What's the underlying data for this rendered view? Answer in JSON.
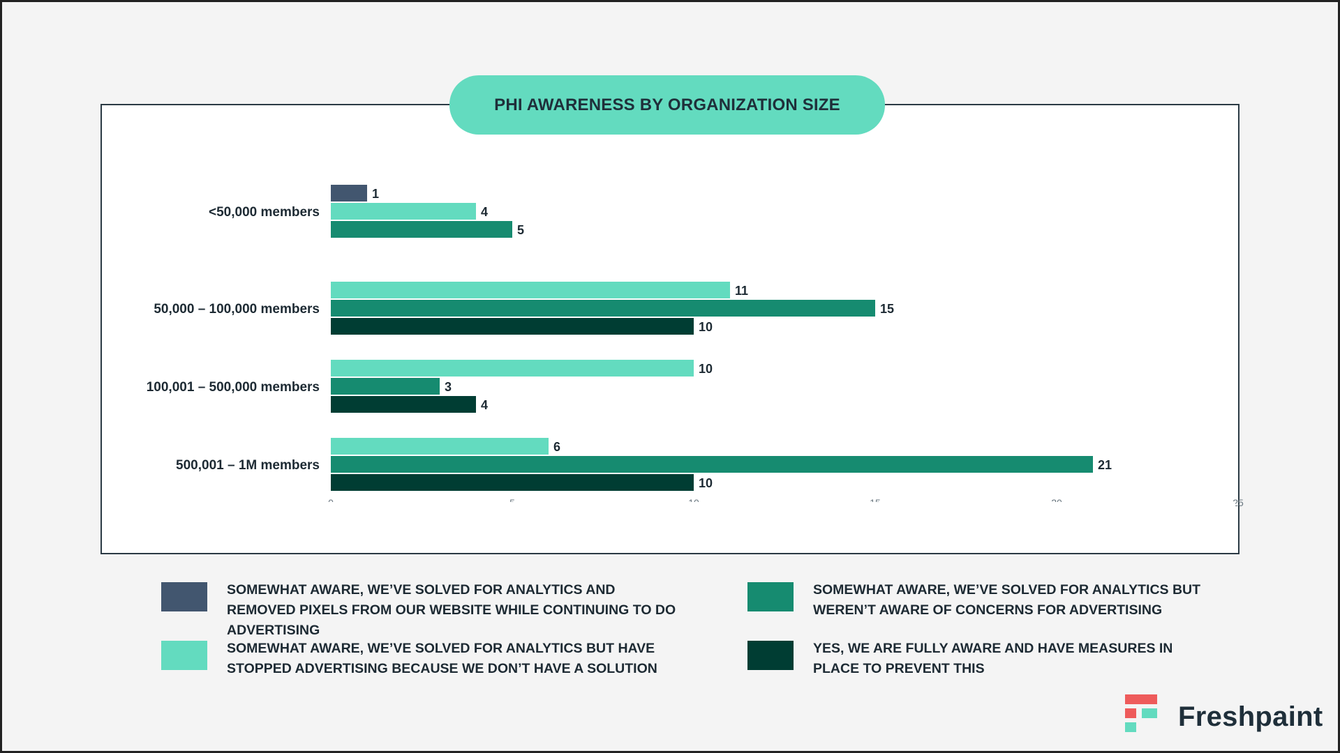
{
  "chart_data": {
    "type": "bar",
    "orientation": "horizontal",
    "title": "PHI AWARENESS BY ORGANIZATION SIZE",
    "categories": [
      "<50,000 members",
      "50,000 – 100,000 members",
      "100,001 – 500,000 members",
      "500,001 – 1M members"
    ],
    "series": [
      {
        "name": "SOMEWHAT AWARE, WE’VE SOLVED FOR ANALYTICS AND REMOVED PIXELS FROM OUR WEBSITE WHILE CONTINUING TO DO ADVERTISING",
        "color": "#42566f",
        "values": [
          1,
          null,
          null,
          null
        ]
      },
      {
        "name": "SOMEWHAT AWARE, WE’VE SOLVED FOR ANALYTICS BUT HAVE STOPPED ADVERTISING BECAUSE WE DON’T HAVE A SOLUTION",
        "color": "#63dbbf",
        "values": [
          4,
          11,
          10,
          6
        ]
      },
      {
        "name": "SOMEWHAT AWARE, WE’VE SOLVED FOR ANALYTICS BUT WEREN’T AWARE OF CONCERNS FOR ADVERTISING",
        "color": "#168b70",
        "values": [
          5,
          15,
          3,
          21
        ]
      },
      {
        "name": "YES, WE ARE FULLY AWARE AND HAVE MEASURES IN PLACE TO PREVENT THIS",
        "color": "#003d33",
        "values": [
          null,
          10,
          4,
          10
        ]
      }
    ],
    "xlim": [
      0,
      25
    ],
    "xticks": [
      0,
      5,
      10,
      15,
      20,
      25
    ],
    "grid": false,
    "legend_position": "bottom"
  },
  "legend_layout": [
    0,
    2,
    1,
    3
  ],
  "brand": {
    "name": "Freshpaint",
    "colors": {
      "red": "#ee5b5b",
      "teal": "#63dbbf",
      "dark": "#1f2f3a"
    }
  }
}
